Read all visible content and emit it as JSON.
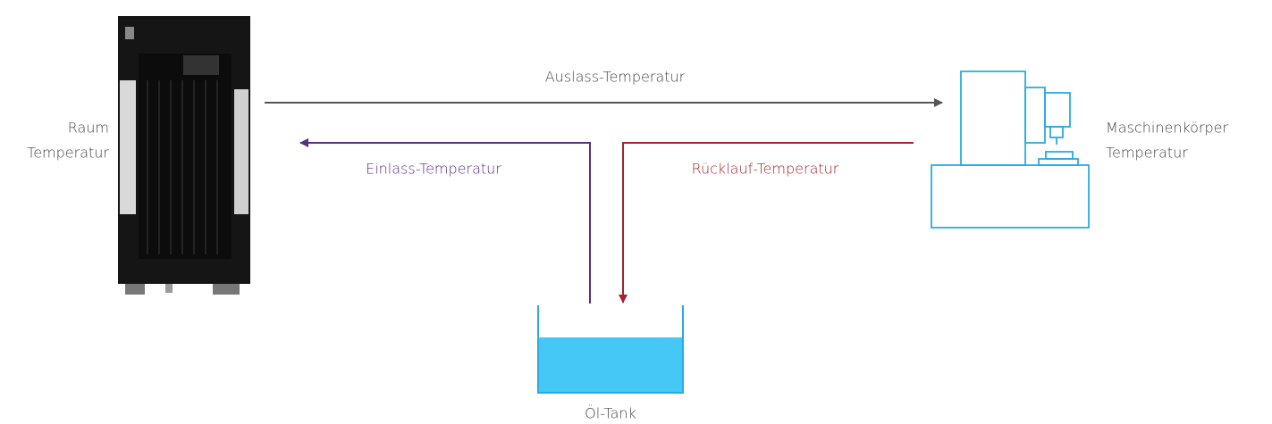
{
  "nodes": [
    {
      "id": "chiller",
      "label": [
        "Raum",
        "Temperatur"
      ]
    },
    {
      "id": "machine",
      "label": [
        "Maschinenkörper",
        "Temperatur"
      ]
    },
    {
      "id": "tank",
      "label": "Öl-Tank"
    }
  ],
  "edges": [
    {
      "label": "Auslass-Temperatur"
    },
    {
      "label": "Einlass-Temperatur"
    },
    {
      "label": "Rücklauf-Temperatur"
    }
  ]
}
